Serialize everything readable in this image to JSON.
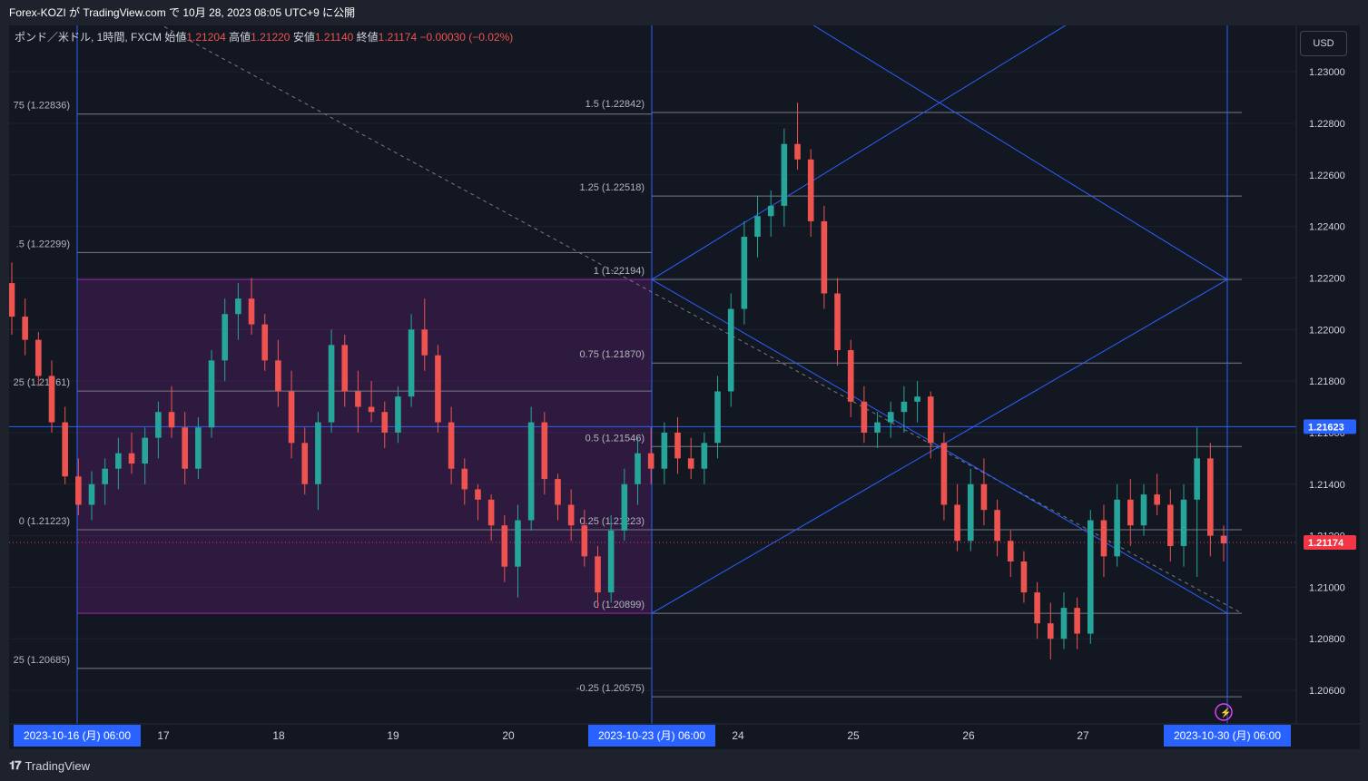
{
  "header": {
    "published": "Forex-KOZI が TradingView.com で 10月 28, 2023 08:05 UTC+9 に公開"
  },
  "legend": {
    "symbol": "ポンド／米ドル, 1時間, FXCM",
    "open_label": "始値",
    "open": "1.21204",
    "high_label": "高値",
    "high": "1.21220",
    "low_label": "安値",
    "low": "1.21140",
    "close_label": "終値",
    "close": "1.21174",
    "change": "−0.00030 (−0.02%)"
  },
  "currency_button": "USD",
  "footer": {
    "brand": "TradingView"
  },
  "colors": {
    "up": "#26a69a",
    "down": "#ef5350",
    "drawing": "#2962ff",
    "box": "#9c27b0",
    "bg": "#131722"
  },
  "chart_data": {
    "type": "candlestick",
    "title": "",
    "ylim": [
      1.2047,
      1.2318
    ],
    "y_ticks": [
      "1.23000",
      "1.22800",
      "1.22600",
      "1.22400",
      "1.22200",
      "1.22000",
      "1.21800",
      "1.21600",
      "1.21400",
      "1.21200",
      "1.21000",
      "1.20800",
      "1.20600"
    ],
    "x_labels": [
      {
        "label": "2023-10-16 (月)   06:00",
        "highlight": true
      },
      {
        "label": "17"
      },
      {
        "label": "18"
      },
      {
        "label": "19"
      },
      {
        "label": "20"
      },
      {
        "label": "2023-10-23 (月)   06:00",
        "highlight": true
      },
      {
        "label": "24"
      },
      {
        "label": "25"
      },
      {
        "label": "26"
      },
      {
        "label": "27"
      },
      {
        "label": "2023-10-30 (月)   06:00",
        "highlight": true
      }
    ],
    "price_tags": [
      {
        "label": "1.21623",
        "value": 1.21623,
        "color": "#2962ff"
      },
      {
        "label": "1.21174",
        "value": 1.21174,
        "color": "#f23645"
      }
    ],
    "fib_left": [
      {
        "label": "75 (1.22836)",
        "value": 1.22836
      },
      {
        "label": ".5 (1.22299)",
        "value": 1.22299
      },
      {
        "label": "25 (1.21761)",
        "value": 1.21761
      },
      {
        "label": "0 (1.21223)",
        "value": 1.21223
      },
      {
        "label": "25 (1.20685)",
        "value": 1.20685
      }
    ],
    "fib_right": [
      {
        "label": "1.5 (1.22842)",
        "value": 1.22842
      },
      {
        "label": "1.25 (1.22518)",
        "value": 1.22518
      },
      {
        "label": "1 (1.22194)",
        "value": 1.22194
      },
      {
        "label": "0.75 (1.21870)",
        "value": 1.2187
      },
      {
        "label": "0.5 (1.21546)",
        "value": 1.21546
      },
      {
        "label": "0.25 (1.21223)",
        "value": 1.21223
      },
      {
        "label": "0 (1.20899)",
        "value": 1.20899
      },
      {
        "label": "-0.25 (1.20575)",
        "value": 1.20575
      }
    ],
    "box": {
      "top": 1.22194,
      "bottom": 1.20899
    },
    "candles": [
      [
        1.2218,
        1.2226,
        1.2198,
        1.2205
      ],
      [
        1.2205,
        1.2212,
        1.219,
        1.2196
      ],
      [
        1.2196,
        1.2199,
        1.2178,
        1.2182
      ],
      [
        1.2182,
        1.2188,
        1.216,
        1.2164
      ],
      [
        1.2164,
        1.217,
        1.214,
        1.2143
      ],
      [
        1.2143,
        1.215,
        1.2128,
        1.2132
      ],
      [
        1.2132,
        1.2145,
        1.2126,
        1.214
      ],
      [
        1.214,
        1.215,
        1.2132,
        1.2146
      ],
      [
        1.2146,
        1.2158,
        1.2138,
        1.2152
      ],
      [
        1.2152,
        1.216,
        1.2144,
        1.2148
      ],
      [
        1.2148,
        1.2162,
        1.214,
        1.2158
      ],
      [
        1.2158,
        1.2172,
        1.215,
        1.2168
      ],
      [
        1.2168,
        1.2178,
        1.2158,
        1.2162
      ],
      [
        1.2162,
        1.2168,
        1.214,
        1.2146
      ],
      [
        1.2146,
        1.2166,
        1.2142,
        1.2162
      ],
      [
        1.2162,
        1.2192,
        1.2158,
        1.2188
      ],
      [
        1.2188,
        1.2212,
        1.218,
        1.2206
      ],
      [
        1.2206,
        1.2218,
        1.2196,
        1.2212
      ],
      [
        1.2212,
        1.222,
        1.2198,
        1.2202
      ],
      [
        1.2202,
        1.2206,
        1.2184,
        1.2188
      ],
      [
        1.2188,
        1.2196,
        1.217,
        1.2176
      ],
      [
        1.2176,
        1.2184,
        1.215,
        1.2156
      ],
      [
        1.2156,
        1.2162,
        1.2136,
        1.214
      ],
      [
        1.214,
        1.2168,
        1.213,
        1.2164
      ],
      [
        1.2164,
        1.22,
        1.216,
        1.2194
      ],
      [
        1.2194,
        1.2198,
        1.217,
        1.2176
      ],
      [
        1.2176,
        1.2184,
        1.216,
        1.217
      ],
      [
        1.217,
        1.218,
        1.2164,
        1.2168
      ],
      [
        1.2168,
        1.2172,
        1.2154,
        1.216
      ],
      [
        1.216,
        1.2178,
        1.2156,
        1.2174
      ],
      [
        1.2174,
        1.2206,
        1.217,
        1.22
      ],
      [
        1.22,
        1.2212,
        1.2184,
        1.219
      ],
      [
        1.219,
        1.2194,
        1.216,
        1.2164
      ],
      [
        1.2164,
        1.217,
        1.214,
        1.2146
      ],
      [
        1.2146,
        1.215,
        1.2132,
        1.2138
      ],
      [
        1.2138,
        1.214,
        1.2126,
        1.2134
      ],
      [
        1.2134,
        1.2136,
        1.2118,
        1.2124
      ],
      [
        1.2124,
        1.2128,
        1.2102,
        1.2108
      ],
      [
        1.2108,
        1.2132,
        1.2096,
        1.2126
      ],
      [
        1.2126,
        1.217,
        1.2122,
        1.2164
      ],
      [
        1.2164,
        1.2168,
        1.2136,
        1.2142
      ],
      [
        1.2142,
        1.2144,
        1.2126,
        1.2132
      ],
      [
        1.2132,
        1.2138,
        1.2118,
        1.2124
      ],
      [
        1.2124,
        1.213,
        1.2108,
        1.2112
      ],
      [
        1.2112,
        1.2116,
        1.2092,
        1.2098
      ],
      [
        1.2098,
        1.2128,
        1.2094,
        1.2122
      ],
      [
        1.2122,
        1.2146,
        1.2118,
        1.214
      ],
      [
        1.214,
        1.2158,
        1.2132,
        1.2152
      ],
      [
        1.2152,
        1.2162,
        1.214,
        1.2146
      ],
      [
        1.2146,
        1.2164,
        1.214,
        1.216
      ],
      [
        1.216,
        1.2166,
        1.2144,
        1.215
      ],
      [
        1.215,
        1.2158,
        1.2142,
        1.2146
      ],
      [
        1.2146,
        1.216,
        1.214,
        1.2156
      ],
      [
        1.2156,
        1.2182,
        1.215,
        1.2176
      ],
      [
        1.2176,
        1.2214,
        1.217,
        1.2208
      ],
      [
        1.2208,
        1.2242,
        1.2202,
        1.2236
      ],
      [
        1.2236,
        1.2252,
        1.2228,
        1.2244
      ],
      [
        1.2244,
        1.2254,
        1.2236,
        1.2248
      ],
      [
        1.2248,
        1.2278,
        1.224,
        1.2272
      ],
      [
        1.2272,
        1.2288,
        1.2262,
        1.2266
      ],
      [
        1.2266,
        1.227,
        1.2236,
        1.2242
      ],
      [
        1.2242,
        1.2248,
        1.2208,
        1.2214
      ],
      [
        1.2214,
        1.222,
        1.2186,
        1.2192
      ],
      [
        1.2192,
        1.2196,
        1.2166,
        1.2172
      ],
      [
        1.2172,
        1.2178,
        1.2156,
        1.216
      ],
      [
        1.216,
        1.2168,
        1.2154,
        1.2164
      ],
      [
        1.2164,
        1.2172,
        1.2158,
        1.2168
      ],
      [
        1.2168,
        1.2178,
        1.216,
        1.2172
      ],
      [
        1.2172,
        1.218,
        1.2164,
        1.2174
      ],
      [
        1.2174,
        1.2176,
        1.215,
        1.2156
      ],
      [
        1.2156,
        1.216,
        1.2126,
        1.2132
      ],
      [
        1.2132,
        1.214,
        1.2114,
        1.2118
      ],
      [
        1.2118,
        1.2146,
        1.2114,
        1.214
      ],
      [
        1.214,
        1.215,
        1.2124,
        1.213
      ],
      [
        1.213,
        1.2134,
        1.2112,
        1.2118
      ],
      [
        1.2118,
        1.2122,
        1.2104,
        1.211
      ],
      [
        1.211,
        1.2114,
        1.2094,
        1.2098
      ],
      [
        1.2098,
        1.2102,
        1.208,
        1.2086
      ],
      [
        1.2086,
        1.2094,
        1.2072,
        1.208
      ],
      [
        1.208,
        1.2098,
        1.2076,
        1.2092
      ],
      [
        1.2092,
        1.2096,
        1.2076,
        1.2082
      ],
      [
        1.2082,
        1.213,
        1.2078,
        1.2126
      ],
      [
        1.2126,
        1.2132,
        1.2104,
        1.2112
      ],
      [
        1.2112,
        1.214,
        1.2108,
        1.2134
      ],
      [
        1.2134,
        1.2142,
        1.2116,
        1.2124
      ],
      [
        1.2124,
        1.214,
        1.212,
        1.2136
      ],
      [
        1.2136,
        1.2144,
        1.2128,
        1.2132
      ],
      [
        1.2132,
        1.2138,
        1.211,
        1.2116
      ],
      [
        1.2116,
        1.214,
        1.2108,
        1.2134
      ],
      [
        1.2134,
        1.2162,
        1.2104,
        1.215
      ],
      [
        1.215,
        1.2156,
        1.2112,
        1.212
      ],
      [
        1.212,
        1.2124,
        1.211,
        1.2117
      ]
    ]
  }
}
